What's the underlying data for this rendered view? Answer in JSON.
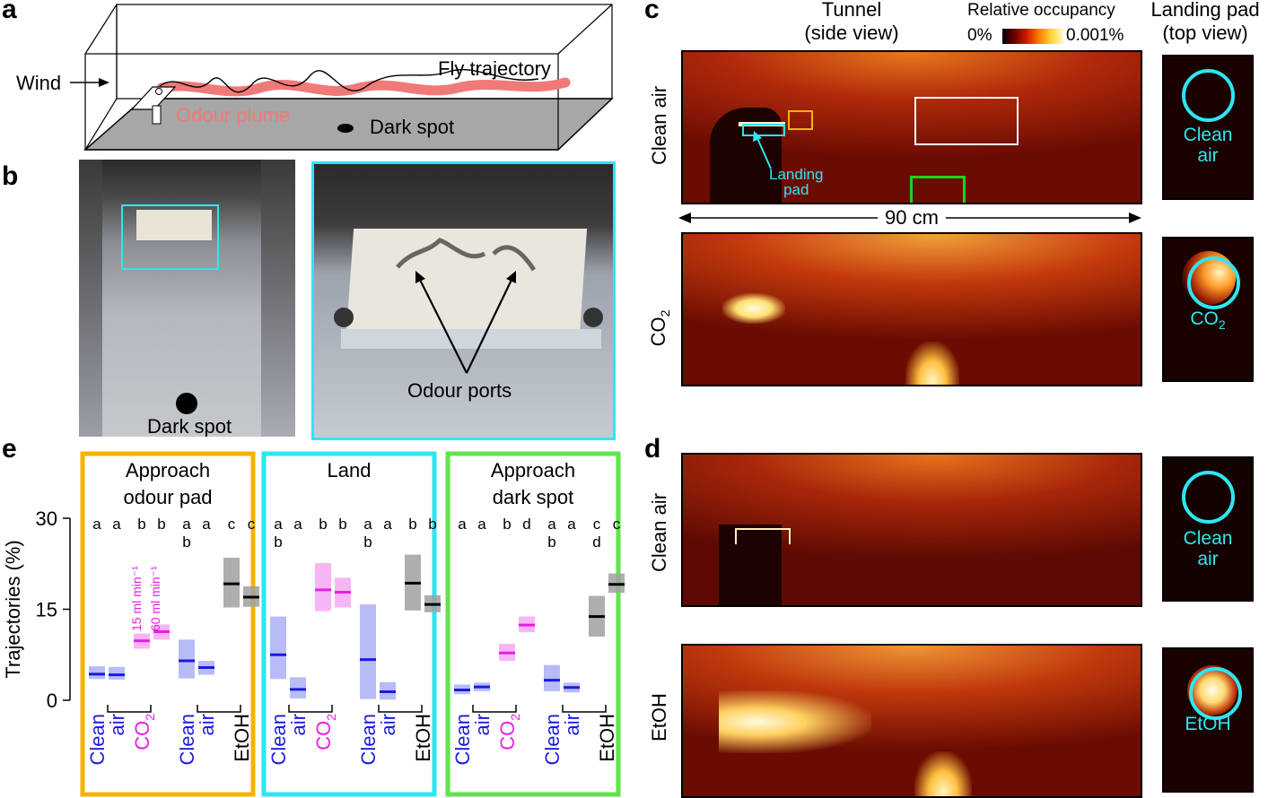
{
  "panel_labels": {
    "a": "a",
    "b": "b",
    "c": "c",
    "d": "d",
    "e": "e"
  },
  "panel_a": {
    "wind": "Wind",
    "fly_trajectory": "Fly trajectory",
    "odour_plume": "Odour plume",
    "dark_spot": "Dark spot"
  },
  "panel_b": {
    "dark_spot": "Dark spot",
    "odour_ports": "Odour ports"
  },
  "panel_c": {
    "tunnel_title_1": "Tunnel",
    "tunnel_title_2": "(side view)",
    "colorbar_title": "Relative occupancy",
    "colorbar_min": "0%",
    "colorbar_max": "0.001%",
    "landing_title_1": "Landing pad",
    "landing_title_2": "(top view)",
    "row1_label": "Clean air",
    "row2_label_main": "CO",
    "row2_label_sub": "2",
    "landing_pad_1": "Landing",
    "landing_pad_2": "pad",
    "distance": "90 cm",
    "pad1_text_1": "Clean",
    "pad1_text_2": "air",
    "pad2_text_main": "CO",
    "pad2_text_sub": "2"
  },
  "panel_d": {
    "row1_label": "Clean air",
    "row2_label": "EtOH",
    "pad1_text_1": "Clean",
    "pad1_text_2": "air",
    "pad2_text": "EtOH"
  },
  "panel_e": {
    "ylabel": "Trajectories (%)",
    "yticks": [
      "0",
      "15",
      "30"
    ],
    "box1_title_1": "Approach",
    "box1_title_2": "odour pad",
    "box2_title": "Land",
    "box3_title": "Approach",
    "box3_title_2": "dark spot",
    "flow1": "15 ml min⁻¹",
    "flow2": "60 ml min⁻¹",
    "xlabel_clean": "Clean",
    "xlabel_air": "air",
    "xlabel_co2_main": "CO",
    "xlabel_co2_sub": "2",
    "xlabel_etoh": "EtOH",
    "colors": {
      "clean": "#1a1adf",
      "co2": "#e61ee6",
      "etoh": "#000000",
      "orange": "#f5b400",
      "cyan": "#2ee6f0",
      "green": "#5ee64a"
    }
  },
  "chart_data": {
    "type": "bar",
    "ylabel": "Trajectories (%)",
    "ylim": [
      0,
      30
    ],
    "groups": [
      {
        "title": "Approach odour pad",
        "letters": [
          [
            "a"
          ],
          [
            "a"
          ],
          [
            "b"
          ],
          [
            "b"
          ],
          [
            "a",
            "b"
          ],
          [
            "a"
          ],
          [
            "c"
          ],
          [
            "c"
          ]
        ],
        "series": [
          {
            "name": "Clean air",
            "values": [
              4.3,
              4.2
            ],
            "low": [
              3.5,
              3.4
            ],
            "high": [
              5.6,
              5.5
            ]
          },
          {
            "name": "CO2",
            "values": [
              9.8,
              11.3
            ],
            "low": [
              8.5,
              10.0
            ],
            "high": [
              11.0,
              12.5
            ]
          },
          {
            "name": "Clean air",
            "values": [
              6.5,
              5.4
            ],
            "low": [
              3.6,
              4.2
            ],
            "high": [
              10.0,
              6.5
            ]
          },
          {
            "name": "EtOH",
            "values": [
              19.2,
              17.0
            ],
            "low": [
              15.3,
              15.4
            ],
            "high": [
              23.5,
              18.8
            ]
          }
        ]
      },
      {
        "title": "Land",
        "letters": [
          [
            "a",
            "b"
          ],
          [
            "a"
          ],
          [
            "b"
          ],
          [
            "b"
          ],
          [
            "a",
            "b"
          ],
          [
            "a"
          ],
          [
            "b"
          ],
          [
            "b"
          ]
        ],
        "series": [
          {
            "name": "Clean air",
            "values": [
              7.5,
              1.8
            ],
            "low": [
              3.5,
              0.3
            ],
            "high": [
              13.8,
              3.8
            ]
          },
          {
            "name": "CO2",
            "values": [
              18.2,
              17.8
            ],
            "low": [
              14.7,
              15.3
            ],
            "high": [
              22.6,
              20.2
            ]
          },
          {
            "name": "Clean air",
            "values": [
              6.7,
              1.4
            ],
            "low": [
              0.2,
              0.1
            ],
            "high": [
              15.8,
              3.0
            ]
          },
          {
            "name": "EtOH",
            "values": [
              19.3,
              15.8
            ],
            "low": [
              14.8,
              14.5
            ],
            "high": [
              24.0,
              17.3
            ]
          }
        ]
      },
      {
        "title": "Approach dark spot",
        "letters": [
          [
            "a"
          ],
          [
            "a"
          ],
          [
            "b"
          ],
          [
            "d"
          ],
          [
            "a",
            "b"
          ],
          [
            "a"
          ],
          [
            "c",
            "d"
          ],
          [
            "c"
          ]
        ],
        "series": [
          {
            "name": "Clean air",
            "values": [
              1.7,
              2.2
            ],
            "low": [
              1.0,
              1.5
            ],
            "high": [
              2.6,
              2.9
            ]
          },
          {
            "name": "CO2",
            "values": [
              7.8,
              12.4
            ],
            "low": [
              6.5,
              11.2
            ],
            "high": [
              9.3,
              13.8
            ]
          },
          {
            "name": "Clean air",
            "values": [
              3.3,
              2.1
            ],
            "low": [
              1.5,
              1.3
            ],
            "high": [
              5.8,
              2.9
            ]
          },
          {
            "name": "EtOH",
            "values": [
              13.8,
              19.1
            ],
            "low": [
              10.5,
              17.7
            ],
            "high": [
              17.2,
              20.9
            ]
          }
        ]
      }
    ]
  }
}
